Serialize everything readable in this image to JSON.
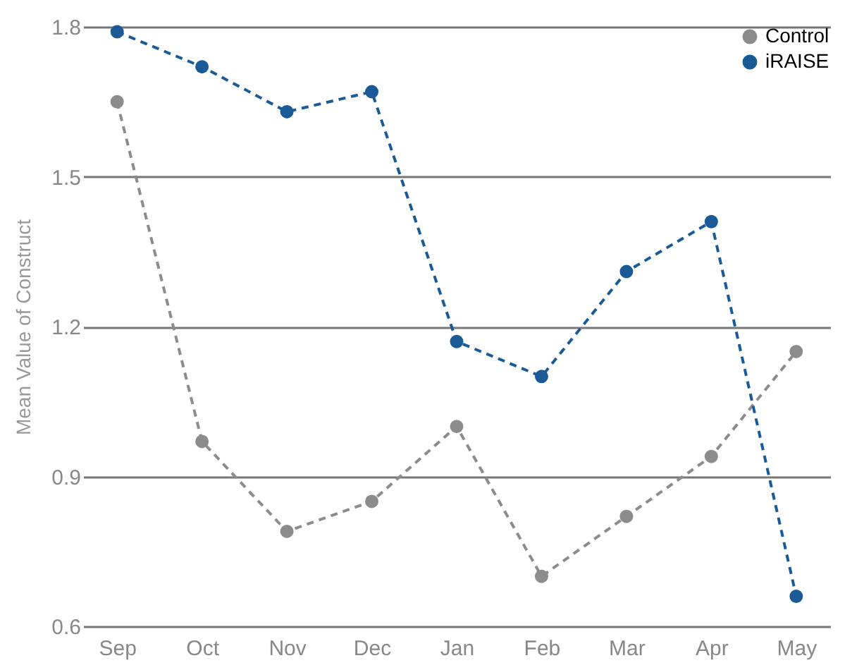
{
  "chart_data": {
    "type": "line",
    "ylabel": "Mean Value of Construct",
    "categories": [
      "Sep",
      "Oct",
      "Nov",
      "Dec",
      "Jan",
      "Feb",
      "Mar",
      "Apr",
      "May"
    ],
    "series": [
      {
        "name": "Control",
        "color": "#8c8c8c",
        "values": [
          1.65,
          0.97,
          0.79,
          0.85,
          1.0,
          0.7,
          0.82,
          0.94,
          1.15
        ]
      },
      {
        "name": "iRAISE",
        "color": "#1a5a96",
        "values": [
          1.79,
          1.72,
          1.63,
          1.67,
          1.17,
          1.1,
          1.31,
          1.41,
          0.66
        ]
      }
    ],
    "ylim": [
      0.6,
      1.8
    ],
    "yticks": [
      0.6,
      0.9,
      1.2,
      1.5,
      1.8
    ],
    "grid": "y",
    "legend": "top right",
    "marker": "circle",
    "line_style": "dashed"
  }
}
